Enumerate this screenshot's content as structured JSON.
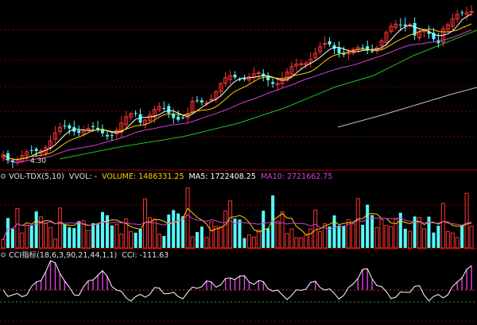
{
  "price_panel": {
    "low_label": "4.30",
    "colors": {
      "up": "#ff3232",
      "down": "#54fcfc",
      "ma_short": "#ffffff",
      "ma_mid": "#ffd000",
      "ma_long": "#d040d0",
      "ma_60": "#20c020",
      "ma_120": "#c0c0c0",
      "grid": "#7a0000"
    }
  },
  "volume_panel": {
    "indicator_name": "VOL-TDX(5,10)",
    "vvol_label": "VVOL: -",
    "volume_label": "VOLUME: 1486331.25",
    "ma5_label": "MA5: 1722408.25",
    "ma10_label": "MA10: 2721662.75"
  },
  "cci_panel": {
    "indicator_name": "CCI指标(18,6,3,90,21,44,1,1)",
    "cci_label": "CCI: -111.63"
  },
  "icons": [
    "gear-icon"
  ]
}
